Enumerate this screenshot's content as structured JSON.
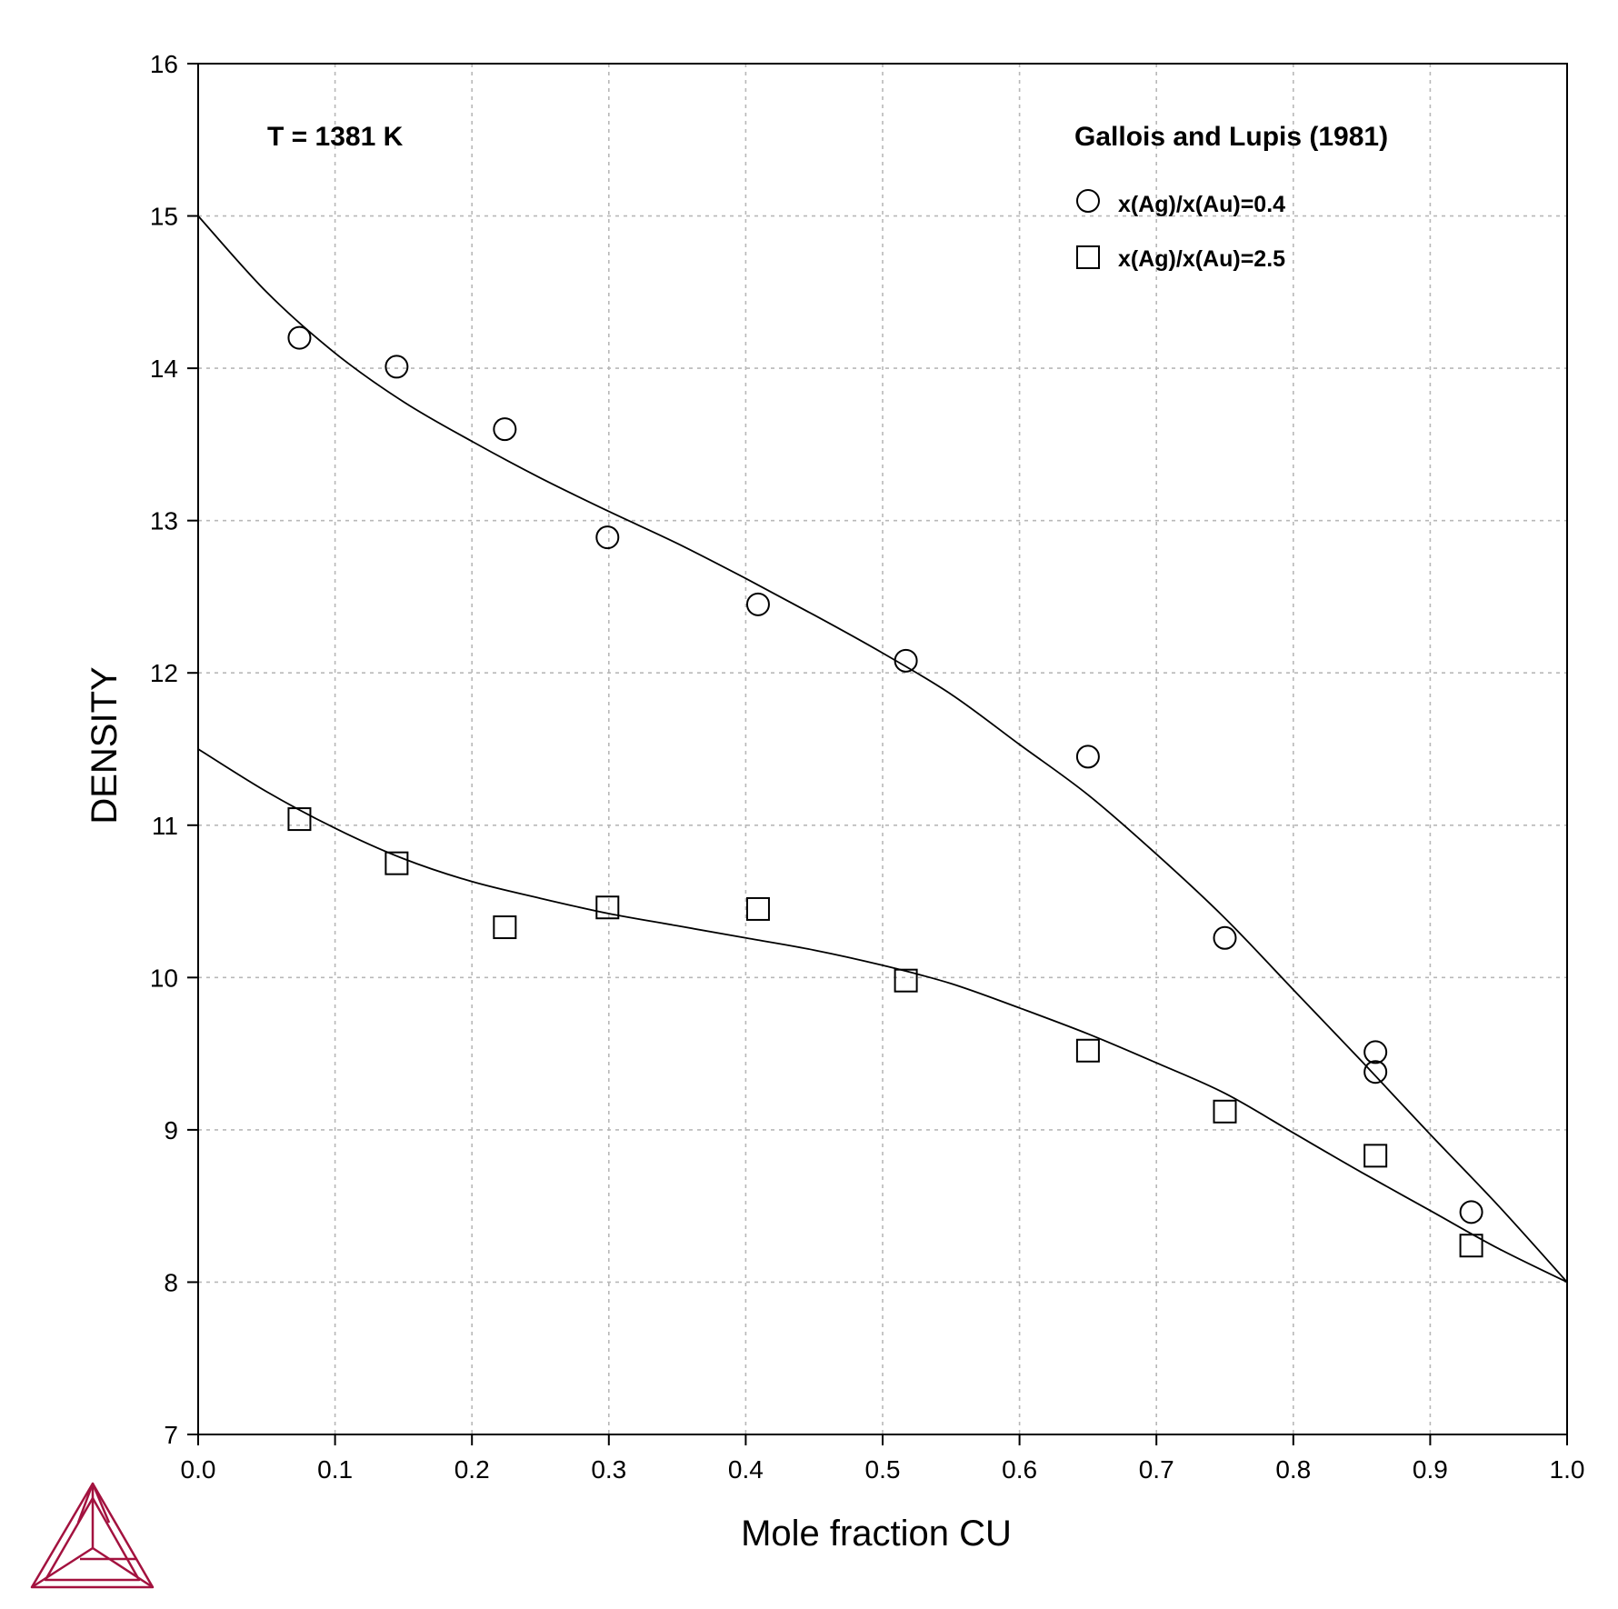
{
  "chart_data": {
    "type": "scatter",
    "title": "",
    "xlabel": "Mole fraction CU",
    "ylabel": "DENSITY",
    "xlim": [
      0.0,
      1.0
    ],
    "ylim": [
      7,
      16
    ],
    "x_ticks": [
      "0.0",
      "0.1",
      "0.2",
      "0.3",
      "0.4",
      "0.5",
      "0.6",
      "0.7",
      "0.8",
      "0.9",
      "1.0"
    ],
    "y_ticks": [
      "7",
      "8",
      "9",
      "10",
      "11",
      "12",
      "13",
      "14",
      "15",
      "16"
    ],
    "grid": true,
    "annotation": "T = 1381 K",
    "legend": {
      "title": "Gallois and Lupis (1981)",
      "placement": "top-right",
      "entries": [
        {
          "marker": "circle",
          "label": "x(Ag)/x(Au)=0.4"
        },
        {
          "marker": "square",
          "label": "x(Ag)/x(Au)=2.5"
        }
      ]
    },
    "series": [
      {
        "marker": "circle",
        "points": [
          [
            0.074,
            14.2
          ],
          [
            0.145,
            14.01
          ],
          [
            0.224,
            13.6
          ],
          [
            0.299,
            12.89
          ],
          [
            0.409,
            12.45
          ],
          [
            0.517,
            12.08
          ],
          [
            0.65,
            11.45
          ],
          [
            0.75,
            10.26
          ],
          [
            0.86,
            9.51
          ],
          [
            0.86,
            9.38
          ],
          [
            0.93,
            8.46
          ]
        ]
      },
      {
        "marker": "square",
        "points": [
          [
            0.074,
            11.04
          ],
          [
            0.145,
            10.75
          ],
          [
            0.224,
            10.33
          ],
          [
            0.299,
            10.46
          ],
          [
            0.409,
            10.45
          ],
          [
            0.517,
            9.98
          ],
          [
            0.65,
            9.52
          ],
          [
            0.75,
            9.12
          ],
          [
            0.86,
            8.83
          ],
          [
            0.93,
            8.24
          ]
        ]
      }
    ],
    "curves": [
      {
        "points": [
          [
            0.0,
            15.0
          ],
          [
            0.05,
            14.5
          ],
          [
            0.1,
            14.1
          ],
          [
            0.15,
            13.78
          ],
          [
            0.2,
            13.52
          ],
          [
            0.25,
            13.28
          ],
          [
            0.3,
            13.06
          ],
          [
            0.35,
            12.85
          ],
          [
            0.4,
            12.62
          ],
          [
            0.45,
            12.38
          ],
          [
            0.5,
            12.13
          ],
          [
            0.55,
            11.86
          ],
          [
            0.6,
            11.53
          ],
          [
            0.65,
            11.2
          ],
          [
            0.7,
            10.81
          ],
          [
            0.75,
            10.39
          ],
          [
            0.8,
            9.92
          ],
          [
            0.85,
            9.45
          ],
          [
            0.9,
            8.97
          ],
          [
            0.95,
            8.5
          ],
          [
            1.0,
            8.0
          ]
        ]
      },
      {
        "points": [
          [
            0.0,
            11.5
          ],
          [
            0.05,
            11.22
          ],
          [
            0.1,
            10.98
          ],
          [
            0.15,
            10.78
          ],
          [
            0.2,
            10.63
          ],
          [
            0.25,
            10.52
          ],
          [
            0.3,
            10.42
          ],
          [
            0.35,
            10.34
          ],
          [
            0.4,
            10.26
          ],
          [
            0.45,
            10.18
          ],
          [
            0.5,
            10.08
          ],
          [
            0.55,
            9.96
          ],
          [
            0.6,
            9.8
          ],
          [
            0.65,
            9.63
          ],
          [
            0.7,
            9.44
          ],
          [
            0.75,
            9.24
          ],
          [
            0.8,
            8.98
          ],
          [
            0.85,
            8.72
          ],
          [
            0.9,
            8.47
          ],
          [
            0.95,
            8.22
          ],
          [
            1.0,
            8.0
          ]
        ]
      }
    ]
  },
  "logo": {
    "name": "thermo-calc-logo",
    "color": "#a3123f"
  }
}
